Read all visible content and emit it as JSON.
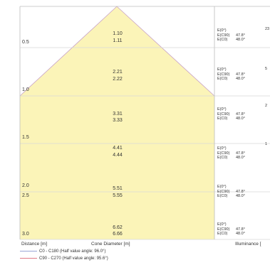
{
  "diagram": {
    "rows": [
      {
        "distance": "0.5",
        "diameter_c0": "1.10",
        "diameter_c90": "1.11",
        "lux_labels": [
          "E(0°)",
          "E(C90)",
          "E(C0)"
        ],
        "angles": [
          "",
          "47.8°",
          "48.0°"
        ]
      },
      {
        "distance": "1.0",
        "diameter_c0": "2.21",
        "diameter_c90": "2.22",
        "lux_labels": [
          "E(0°)",
          "E(C90)",
          "E(C0)"
        ],
        "angles": [
          "",
          "47.8°",
          "48.0°"
        ]
      },
      {
        "distance": "1.5",
        "diameter_c0": "3.31",
        "diameter_c90": "3.33",
        "lux_labels": [
          "E(0°)",
          "E(C90)",
          "E(C0)"
        ],
        "angles": [
          "",
          "47.8°",
          "48.0°"
        ]
      },
      {
        "distance": "2.0",
        "diameter_c0": "4.41",
        "diameter_c90": "4.44",
        "lux_labels": [
          "E(0°)",
          "E(C90)",
          "E(C0)"
        ],
        "angles": [
          "",
          "47.8°",
          "48.0°"
        ]
      },
      {
        "distance": "2.5",
        "diameter_c0": "5.51",
        "diameter_c90": "5.55",
        "lux_labels": [
          "E(0°)",
          "E(C90)",
          "E(C0)"
        ],
        "angles": [
          "",
          "47.8°",
          "48.0°"
        ]
      },
      {
        "distance": "3.0",
        "diameter_c0": "6.62",
        "diameter_c90": "6.66",
        "lux_labels": [
          "E(0°)",
          "E(C90)",
          "E(C0)"
        ],
        "angles": [
          "",
          "47.8°",
          "48.0°"
        ]
      }
    ],
    "edge_values": [
      "23",
      "5",
      "2",
      "1"
    ],
    "captions": {
      "distance": "Distance [m]",
      "cone_diameter": "Cone Diameter [m]",
      "illuminance": "Illuminance ["
    },
    "legend": [
      {
        "label": "C0 - C180 (Half value angle: 96.0°)",
        "color": "#9aa6d6"
      },
      {
        "label": "C90 - C270 (Half value angle: 95.6°)",
        "color": "#e07a88"
      }
    ],
    "colors": {
      "cone_fill": "#fbf4b8",
      "cone_edge": "#c9a3c6",
      "grid": "#d8d8d8",
      "frame": "#bdbdbd"
    }
  }
}
